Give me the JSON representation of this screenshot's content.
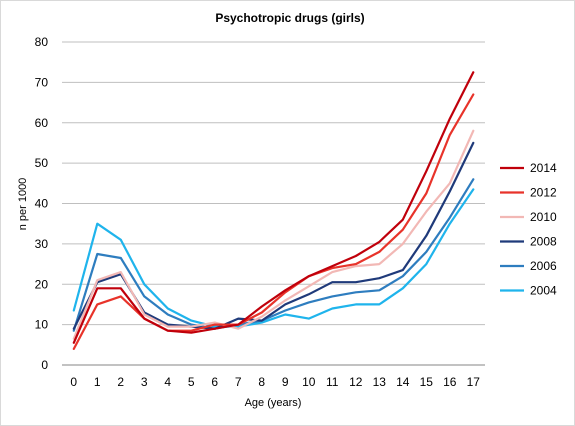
{
  "chart_data": {
    "type": "line",
    "title": "Psychotropic drugs (girls)",
    "xlabel": "Age  (years)",
    "ylabel": "n per 1000",
    "x": [
      0,
      1,
      2,
      3,
      4,
      5,
      6,
      7,
      8,
      9,
      10,
      11,
      12,
      13,
      14,
      15,
      16,
      17
    ],
    "ylim": [
      0,
      80
    ],
    "yticks": [
      0,
      10,
      20,
      30,
      40,
      50,
      60,
      70,
      80
    ],
    "grid": "horizontal",
    "legend_position": "right",
    "series": [
      {
        "name": "2014",
        "color": "#c0000b",
        "values": [
          5.5,
          19,
          19,
          11.5,
          8.5,
          8,
          9,
          10,
          14.5,
          18.5,
          22,
          24.5,
          27,
          30.5,
          36,
          48,
          61,
          72.5
        ]
      },
      {
        "name": "2012",
        "color": "#e8332a",
        "values": [
          4,
          15,
          17,
          11.5,
          8.5,
          8.5,
          10,
          10,
          13,
          18,
          22,
          24,
          25,
          28,
          33.5,
          42.5,
          57,
          67
        ]
      },
      {
        "name": "2010",
        "color": "#f2b8b5",
        "values": [
          6.5,
          21,
          23,
          12.5,
          9.5,
          9.5,
          10.5,
          9,
          12,
          16,
          19.5,
          23,
          24.5,
          25,
          30,
          38,
          45,
          58
        ]
      },
      {
        "name": "2008",
        "color": "#1f3a7a",
        "values": [
          9,
          20.5,
          22.5,
          13,
          10,
          9.5,
          9,
          11.5,
          11,
          15,
          17.5,
          20.5,
          20.5,
          21.5,
          23.5,
          32,
          43,
          55
        ]
      },
      {
        "name": "2006",
        "color": "#2e7dbf",
        "values": [
          8.5,
          27.5,
          26.5,
          17,
          12.5,
          10,
          9,
          10,
          11,
          13.5,
          15.5,
          17,
          18,
          18.5,
          22,
          28,
          36.5,
          46
        ]
      },
      {
        "name": "2004",
        "color": "#1fb4ec",
        "values": [
          13.5,
          35,
          31,
          20,
          14,
          11,
          9.5,
          9.5,
          10.5,
          12.5,
          11.5,
          14,
          15,
          15,
          19,
          25,
          35,
          43.5
        ]
      }
    ]
  }
}
